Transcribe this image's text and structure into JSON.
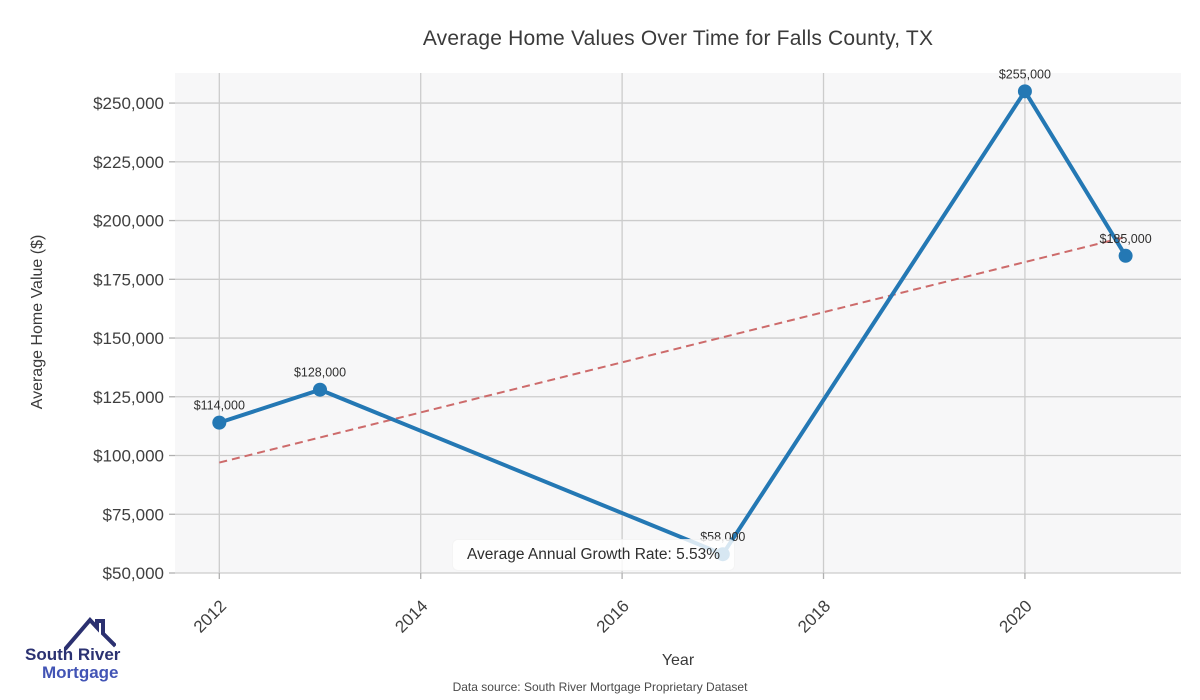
{
  "title": "Average Home Values Over Time for Falls County, TX",
  "chart_data": {
    "type": "line",
    "title": "Average Home Values Over Time for Falls County, TX",
    "xlabel": "Year",
    "ylabel": "Average Home Value ($)",
    "x": [
      2012,
      2013,
      2017,
      2020,
      2021
    ],
    "values": [
      114000,
      128000,
      58000,
      255000,
      185000
    ],
    "point_labels": [
      "$114,000",
      "$128,000",
      "$58,000",
      "$255,000",
      "$185,000"
    ],
    "xticks": [
      2012,
      2014,
      2016,
      2018,
      2020
    ],
    "yticks": [
      50000,
      75000,
      100000,
      125000,
      150000,
      175000,
      200000,
      225000,
      250000
    ],
    "ytick_labels": [
      "$50,000",
      "$75,000",
      "$100,000",
      "$125,000",
      "$150,000",
      "$175,000",
      "$200,000",
      "$225,000",
      "$250,000"
    ],
    "xlim": [
      2011.56,
      2021.55
    ],
    "ylim": [
      50000,
      262800
    ],
    "grid": true,
    "legend": "none",
    "trend": {
      "x": [
        2012,
        2021
      ],
      "values": [
        97000,
        193000
      ],
      "style": "dashed"
    },
    "annotation": "Average Annual Growth Rate: 5.53%",
    "colors": {
      "line": "#2478b4",
      "marker": "#2478b4",
      "trend": "#cd6b6b",
      "plot_bg": "#f7f7f8",
      "grid": "#cccccc",
      "tick_text": "#3f3f3f",
      "point_label_text": "#2f2f2f"
    }
  },
  "annotation_label": "Average Annual Growth Rate: 5.53%",
  "footer": {
    "source": "Data source: South River Mortgage Proprietary Dataset"
  },
  "logo": {
    "line1": "South River",
    "line2": "Mortgage",
    "color1": "#2b3272",
    "color2": "#4254b5",
    "roof_color": "#2b3070"
  }
}
